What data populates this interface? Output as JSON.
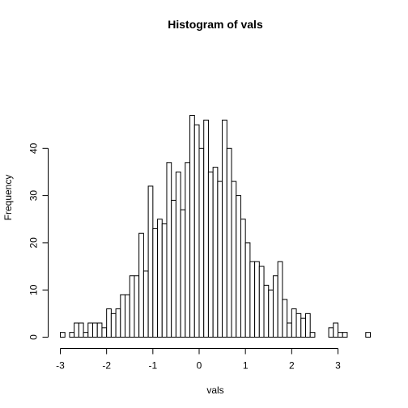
{
  "chart_data": {
    "type": "bar",
    "title": "Histogram of vals",
    "xlabel": "vals",
    "ylabel": "Frequency",
    "bin_width": 0.1,
    "bins_start": [
      -3.0,
      -2.9,
      -2.8,
      -2.7,
      -2.6,
      -2.5,
      -2.4,
      -2.3,
      -2.2,
      -2.1,
      -2.0,
      -1.9,
      -1.8,
      -1.7,
      -1.6,
      -1.5,
      -1.4,
      -1.3,
      -1.2,
      -1.1,
      -1.0,
      -0.9,
      -0.8,
      -0.7,
      -0.6,
      -0.5,
      -0.4,
      -0.3,
      -0.2,
      -0.1,
      0.0,
      0.1,
      0.2,
      0.3,
      0.4,
      0.5,
      0.6,
      0.7,
      0.8,
      0.9,
      1.0,
      1.1,
      1.2,
      1.3,
      1.4,
      1.5,
      1.6,
      1.7,
      1.8,
      1.9,
      2.0,
      2.1,
      2.2,
      2.3,
      2.4,
      2.5,
      2.6,
      2.7,
      2.8,
      2.9,
      3.0,
      3.1,
      3.2,
      3.3,
      3.4,
      3.5,
      3.6
    ],
    "values": [
      1,
      0,
      1,
      3,
      3,
      1,
      3,
      3,
      3,
      2,
      6,
      5,
      6,
      9,
      9,
      13,
      13,
      22,
      14,
      32,
      23,
      25,
      24,
      37,
      29,
      35,
      27,
      37,
      47,
      45,
      40,
      46,
      35,
      36,
      33,
      46,
      40,
      33,
      30,
      25,
      20,
      16,
      16,
      15,
      11,
      10,
      13,
      16,
      8,
      3,
      6,
      5,
      4,
      5,
      1,
      0,
      0,
      0,
      2,
      3,
      1,
      1,
      0,
      0,
      0,
      0,
      1
    ],
    "xlim": [
      -3,
      3.7
    ],
    "ylim": [
      0,
      47
    ],
    "x_ticks": [
      -3,
      -2,
      -1,
      0,
      1,
      2,
      3
    ],
    "x_tick_labels": [
      "-3",
      "-2",
      "-1",
      "0",
      "1",
      "2",
      "3"
    ],
    "y_ticks": [
      0,
      10,
      20,
      30,
      40
    ],
    "y_tick_labels": [
      "0",
      "10",
      "20",
      "30",
      "40"
    ],
    "bar_fill": "#ffffff",
    "bar_stroke": "#000000",
    "grid": false,
    "legend": "none"
  }
}
